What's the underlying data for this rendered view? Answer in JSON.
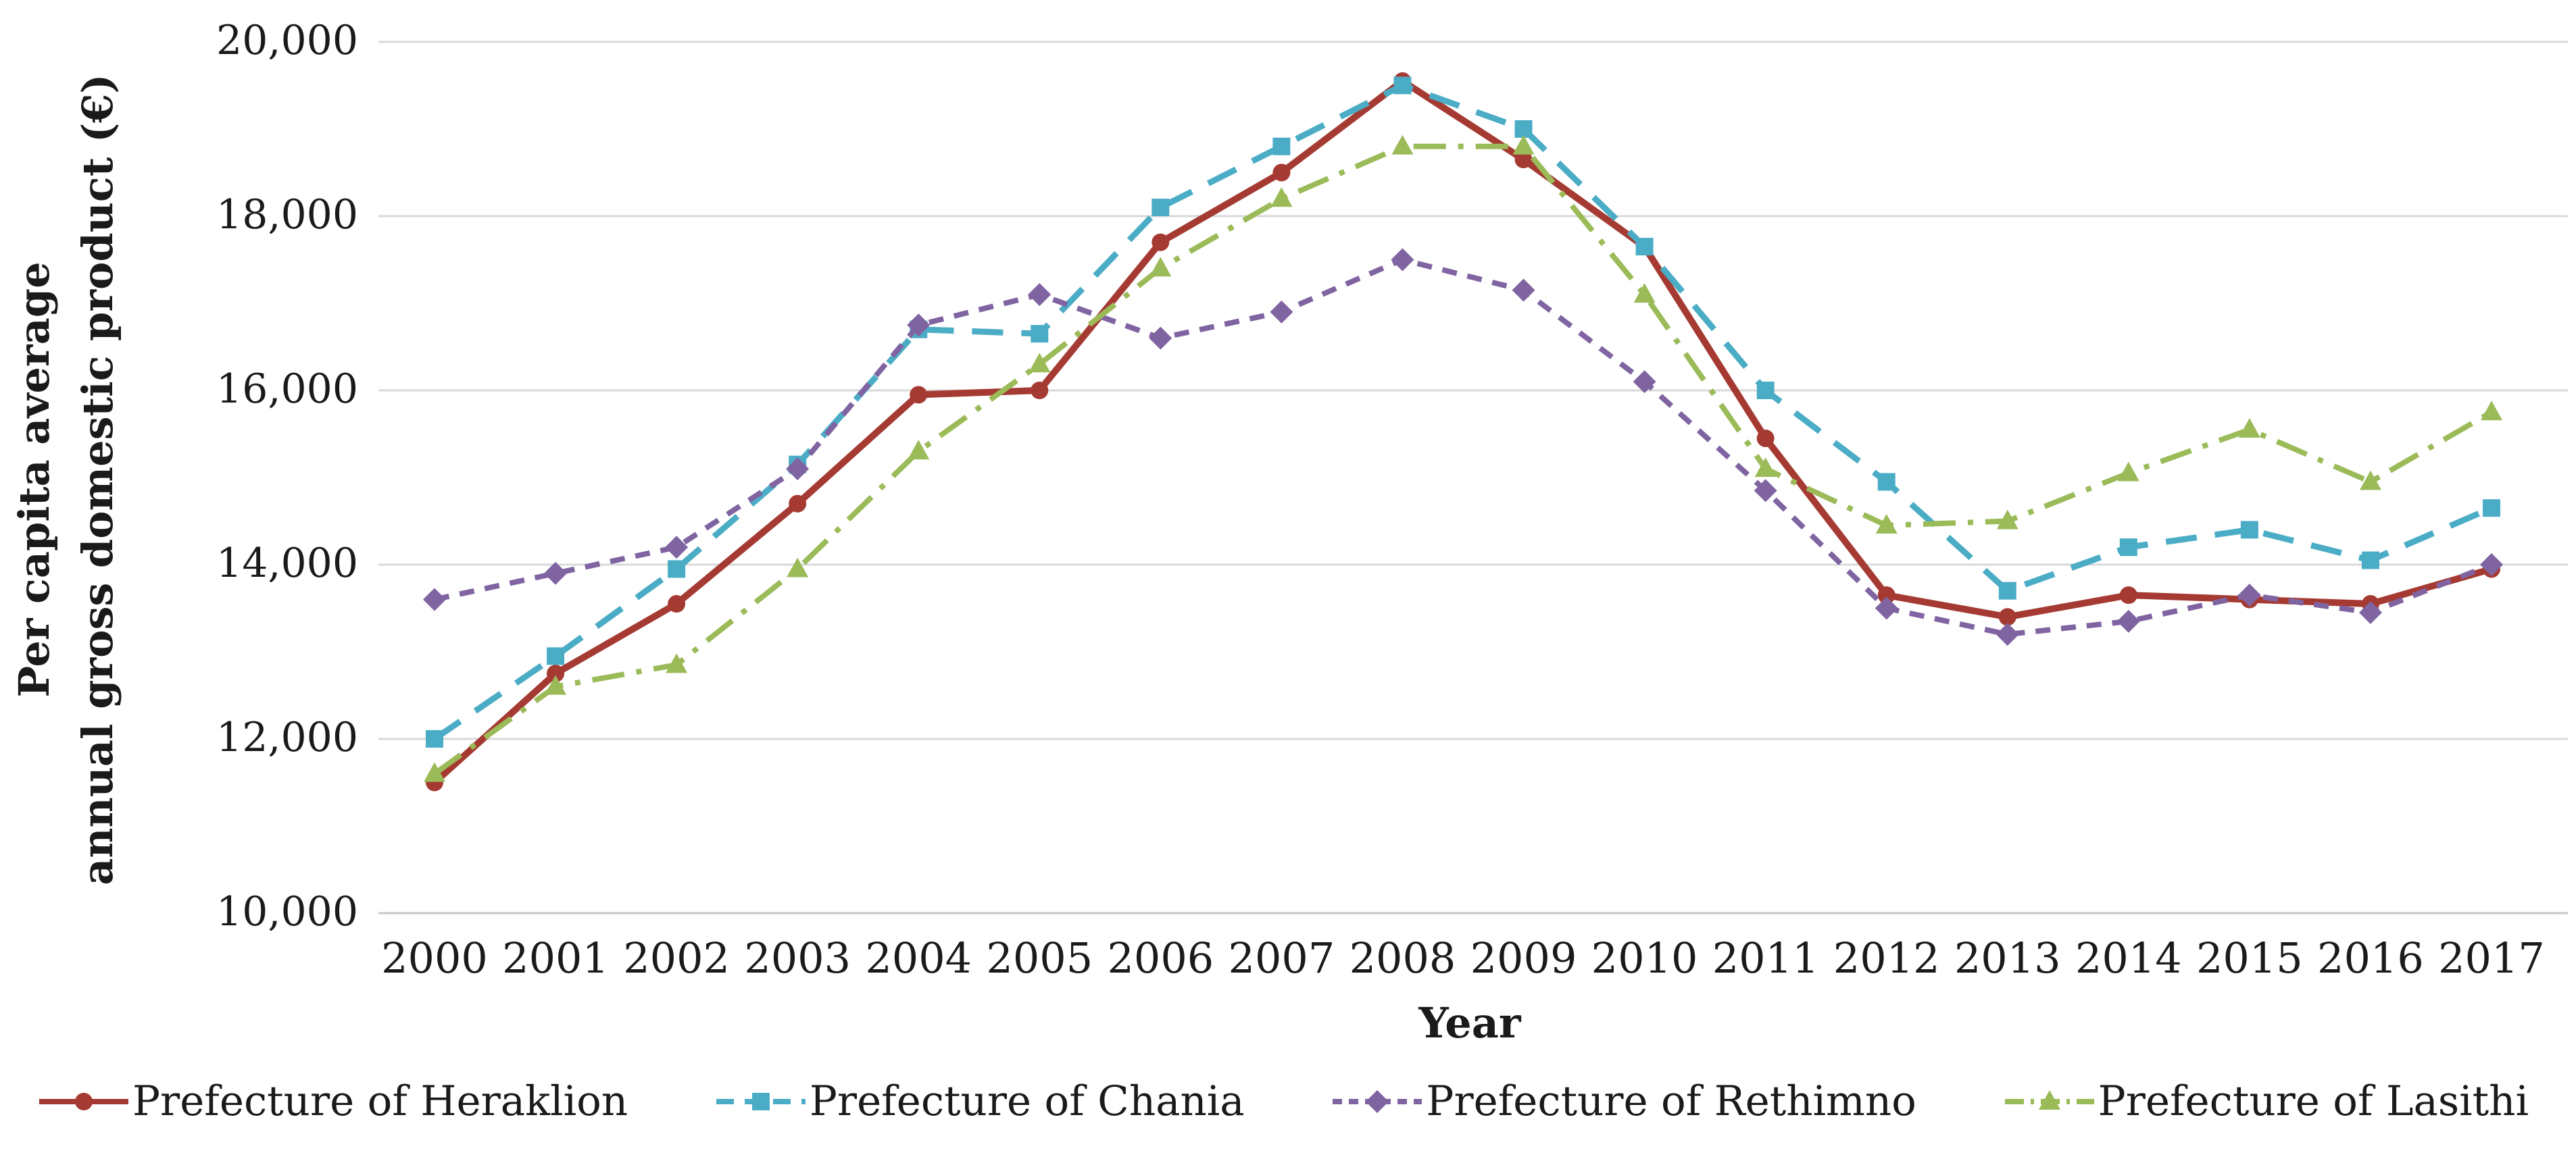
{
  "chart_data": {
    "type": "line",
    "title": "",
    "xlabel": "Year",
    "ylabel_line1": "Per capita average",
    "ylabel_line2": "annual gross domestic product (€)",
    "x": [
      "2000",
      "2001",
      "2002",
      "2003",
      "2004",
      "2005",
      "2006",
      "2007",
      "2008",
      "2009",
      "2010",
      "2011",
      "2012",
      "2013",
      "2014",
      "2015",
      "2016",
      "2017"
    ],
    "y_ticks": [
      10000,
      12000,
      14000,
      16000,
      18000,
      20000
    ],
    "y_tick_labels": [
      "10,000",
      "12,000",
      "14,000",
      "16,000",
      "18,000",
      "20,000"
    ],
    "ylim": [
      10000,
      20000
    ],
    "grid": "horizontal",
    "legend_position": "bottom",
    "colors": {
      "grid": "#D9D9D9",
      "axis": "#C6C6C6",
      "text": "#1a1a1a"
    },
    "series": [
      {
        "name": "Prefecture of Heraklion",
        "color": "#A53A32",
        "marker": "circle",
        "line_style": "solid",
        "values": [
          11500,
          12750,
          13550,
          14700,
          15950,
          16000,
          17700,
          18500,
          19550,
          18650,
          17650,
          15450,
          13650,
          13400,
          13650,
          13600,
          13550,
          13950
        ]
      },
      {
        "name": "Prefecture of Chania",
        "color": "#4BACC6",
        "marker": "square",
        "line_style": "dashed",
        "values": [
          12000,
          12950,
          13950,
          15150,
          16700,
          16650,
          18100,
          18800,
          19500,
          19000,
          17650,
          16000,
          14950,
          13700,
          14200,
          14400,
          14050,
          14650
        ]
      },
      {
        "name": "Prefecture of Rethimno",
        "color": "#8064A2",
        "marker": "diamond",
        "line_style": "dashed-short",
        "values": [
          13600,
          13900,
          14200,
          15100,
          16750,
          17100,
          16600,
          16900,
          17500,
          17150,
          16100,
          14850,
          13500,
          13200,
          13350,
          13650,
          13450,
          14000
        ]
      },
      {
        "name": "Prefecture of Lasithi",
        "color": "#9BBB59",
        "marker": "triangle",
        "line_style": "dash-dot",
        "values": [
          11600,
          12600,
          12850,
          13950,
          15300,
          16300,
          17400,
          18200,
          18800,
          18800,
          17100,
          15100,
          14450,
          14500,
          15050,
          15550,
          14950,
          15750
        ]
      }
    ]
  }
}
